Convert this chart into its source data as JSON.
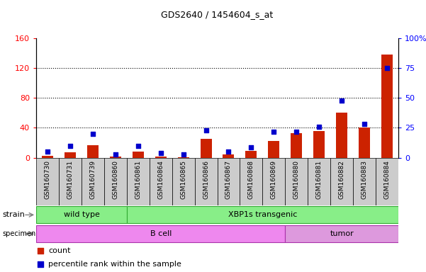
{
  "title": "GDS2640 / 1454604_s_at",
  "samples": [
    "GSM160730",
    "GSM160731",
    "GSM160739",
    "GSM160860",
    "GSM160861",
    "GSM160864",
    "GSM160865",
    "GSM160866",
    "GSM160867",
    "GSM160868",
    "GSM160869",
    "GSM160880",
    "GSM160881",
    "GSM160882",
    "GSM160883",
    "GSM160884"
  ],
  "counts": [
    3,
    7,
    17,
    2,
    8,
    2,
    1,
    25,
    4,
    9,
    22,
    33,
    36,
    60,
    40,
    138
  ],
  "percentiles": [
    5,
    10,
    20,
    3,
    10,
    4,
    3,
    23,
    5,
    9,
    22,
    22,
    26,
    48,
    28,
    75
  ],
  "ylim_left": [
    0,
    160
  ],
  "ylim_right": [
    0,
    100
  ],
  "yticks_left": [
    0,
    40,
    80,
    120,
    160
  ],
  "yticks_right": [
    0,
    25,
    50,
    75,
    100
  ],
  "strain_groups": [
    {
      "label": "wild type",
      "start": 0,
      "end": 4
    },
    {
      "label": "XBP1s transgenic",
      "start": 4,
      "end": 16
    }
  ],
  "specimen_groups": [
    {
      "label": "B cell",
      "start": 0,
      "end": 11
    },
    {
      "label": "tumor",
      "start": 11,
      "end": 16
    }
  ],
  "strain_color": "#88ee88",
  "specimen_b_color": "#ee88ee",
  "specimen_t_color": "#dd99dd",
  "bar_color": "#cc2200",
  "dot_color": "#0000cc",
  "tick_area_color": "#cccccc",
  "legend_count_label": "count",
  "legend_pct_label": "percentile rank within the sample"
}
